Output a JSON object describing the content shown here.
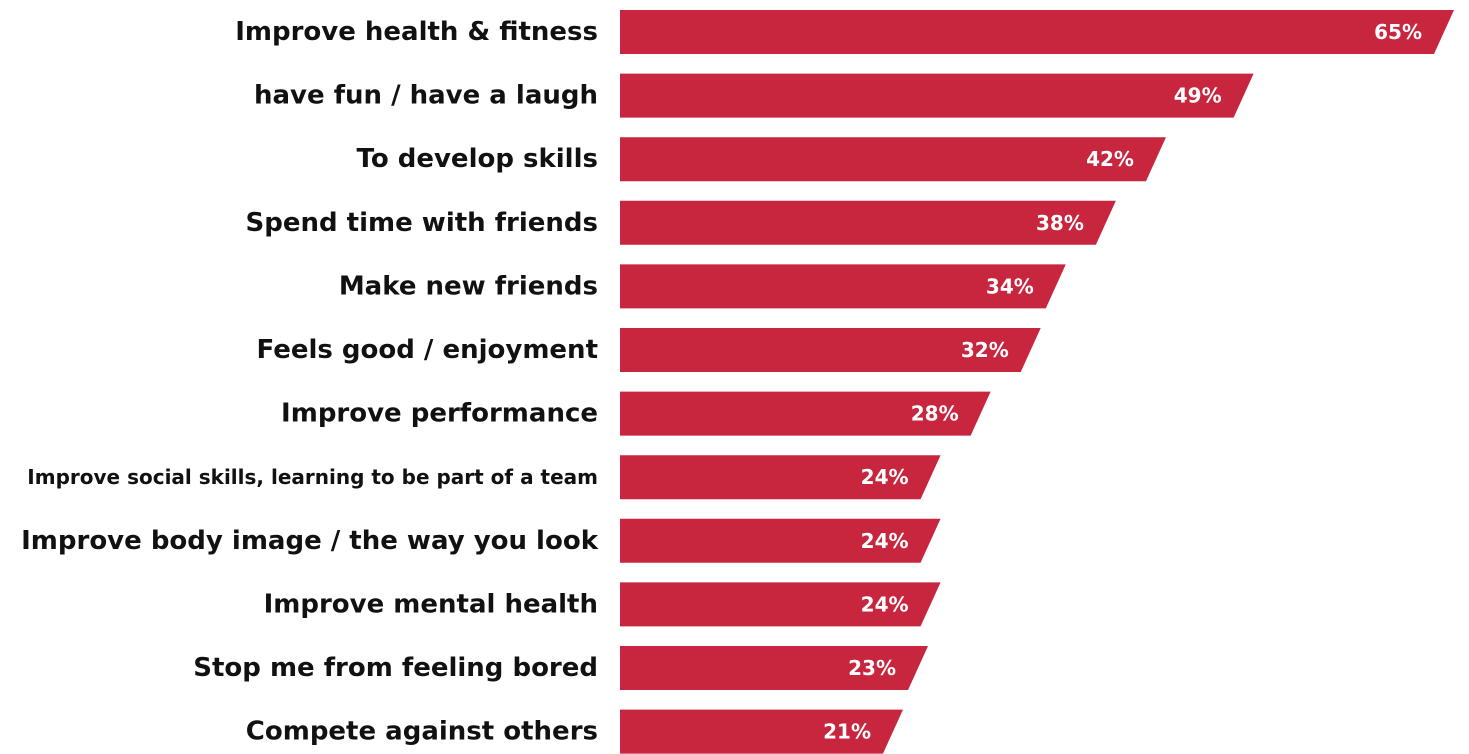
{
  "chart_data": {
    "type": "bar",
    "orientation": "horizontal",
    "categories": [
      "Improve health & fitness",
      "have fun / have a laugh",
      "To develop skills",
      "Spend time with friends",
      "Make new friends",
      "Feels good / enjoyment",
      "Improve performance",
      "Improve social skills, learning to be part of a team",
      "Improve body image / the way you look",
      "Improve mental health",
      "Stop me from feeling bored",
      "Compete against others"
    ],
    "values": [
      65,
      49,
      42,
      38,
      34,
      32,
      28,
      24,
      24,
      24,
      23,
      21
    ],
    "value_labels": [
      "65%",
      "49%",
      "42%",
      "38%",
      "34%",
      "32%",
      "28%",
      "24%",
      "24%",
      "24%",
      "23%",
      "21%"
    ],
    "bar_color": "#c8253e",
    "value_label_color": "#ffffff",
    "category_label_color": "#111111",
    "grid": false,
    "legend": "none"
  }
}
